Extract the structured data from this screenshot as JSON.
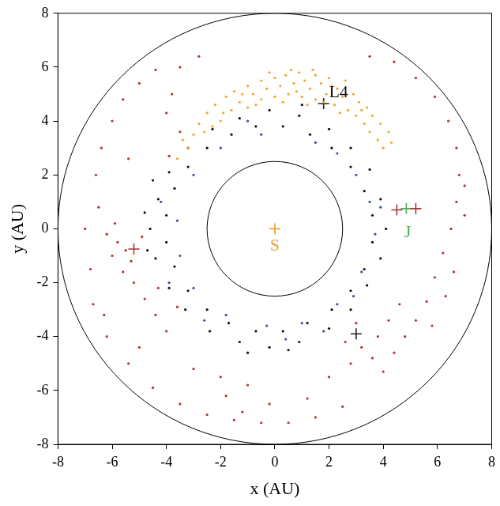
{
  "chart_data": {
    "type": "scatter",
    "x_label": "x (AU)",
    "y_label": "y (AU)",
    "xlim": [
      -8,
      8
    ],
    "ylim": [
      -8,
      8
    ],
    "xticks": [
      -8,
      -6,
      -4,
      -2,
      0,
      2,
      4,
      6,
      8
    ],
    "yticks": [
      -8,
      -6,
      -4,
      -2,
      0,
      2,
      4,
      6,
      8
    ],
    "grid": false,
    "circles": [
      2.5,
      8
    ],
    "series": [
      {
        "color": "#b5302a",
        "marker": "circle",
        "points": [
          [
            -5.5,
            -0.8
          ],
          [
            -5.8,
            -0.5
          ],
          [
            -5.3,
            -1.2
          ],
          [
            -6.0,
            -1.0
          ],
          [
            -5.6,
            -1.6
          ],
          [
            -5.9,
            0.2
          ],
          [
            -6.2,
            -0.2
          ],
          [
            -5.2,
            -2.0
          ],
          [
            -4.8,
            -2.6
          ],
          [
            -4.4,
            -3.2
          ],
          [
            -4.0,
            -3.8
          ],
          [
            -3.6,
            -2.9
          ],
          [
            -4.3,
            -2.2
          ],
          [
            -6.5,
            0.8
          ],
          [
            -6.6,
            2.0
          ],
          [
            -6.4,
            3.0
          ],
          [
            -6.0,
            4.0
          ],
          [
            -5.6,
            4.8
          ],
          [
            -5.0,
            5.4
          ],
          [
            -4.4,
            5.9
          ],
          [
            -3.8,
            5.0
          ],
          [
            -6.8,
            -1.5
          ],
          [
            -6.7,
            -2.8
          ],
          [
            -6.2,
            -4.0
          ],
          [
            -5.4,
            -5.0
          ],
          [
            -4.5,
            -5.9
          ],
          [
            -3.5,
            -6.5
          ],
          [
            -2.5,
            -6.9
          ],
          [
            -1.5,
            -7.1
          ],
          [
            -0.5,
            -7.2
          ],
          [
            0.5,
            -7.2
          ],
          [
            1.5,
            -7.0
          ],
          [
            2.5,
            -6.6
          ],
          [
            -1.8,
            -6.2
          ],
          [
            -0.2,
            -6.5
          ],
          [
            1.2,
            -6.3
          ],
          [
            2.0,
            -5.5
          ],
          [
            2.8,
            -5.0
          ],
          [
            3.2,
            -4.4
          ],
          [
            3.6,
            -4.8
          ],
          [
            4.0,
            -5.3
          ],
          [
            3.8,
            -4.0
          ],
          [
            4.4,
            -4.6
          ],
          [
            4.8,
            -4.0
          ],
          [
            5.2,
            -3.4
          ],
          [
            5.6,
            -2.7
          ],
          [
            5.9,
            -1.8
          ],
          [
            6.2,
            -0.9
          ],
          [
            6.5,
            0.0
          ],
          [
            6.7,
            1.0
          ],
          [
            6.8,
            2.0
          ],
          [
            6.7,
            3.0
          ],
          [
            6.4,
            4.0
          ],
          [
            5.9,
            4.9
          ],
          [
            5.2,
            5.6
          ],
          [
            4.4,
            6.2
          ],
          [
            5.8,
            -3.6
          ],
          [
            6.3,
            -2.5
          ],
          [
            6.6,
            -1.6
          ],
          [
            7.0,
            0.5
          ],
          [
            7.0,
            1.6
          ],
          [
            3.5,
            6.4
          ],
          [
            -2.8,
            6.4
          ],
          [
            -3.5,
            6.0
          ],
          [
            -4.0,
            4.3
          ],
          [
            -3.5,
            3.6
          ],
          [
            -3.9,
            2.7
          ],
          [
            -2.0,
            -5.5
          ],
          [
            -3.0,
            -5.2
          ],
          [
            -1.0,
            -5.8
          ],
          [
            4.6,
            -2.8
          ],
          [
            4.2,
            -3.4
          ],
          [
            -6.3,
            -3.2
          ],
          [
            -7.0,
            0.0
          ],
          [
            -4.9,
            -0.3
          ],
          [
            -5.0,
            -4.4
          ],
          [
            -5.4,
            2.6
          ],
          [
            3.0,
            -3.5
          ],
          [
            2.6,
            -4.2
          ],
          [
            -1.2,
            -6.8
          ]
        ]
      },
      {
        "color": "#f5a623",
        "marker": "circle",
        "points": [
          [
            -3.2,
            3.0
          ],
          [
            -3.0,
            3.5
          ],
          [
            -2.8,
            3.9
          ],
          [
            -2.5,
            4.3
          ],
          [
            -2.6,
            3.6
          ],
          [
            -2.2,
            4.6
          ],
          [
            -2.0,
            4.0
          ],
          [
            -1.8,
            4.9
          ],
          [
            -1.6,
            4.4
          ],
          [
            -1.5,
            5.1
          ],
          [
            -1.3,
            4.7
          ],
          [
            -1.0,
            5.3
          ],
          [
            -1.0,
            4.5
          ],
          [
            -0.8,
            5.0
          ],
          [
            -0.5,
            5.5
          ],
          [
            -0.5,
            4.8
          ],
          [
            -0.3,
            5.2
          ],
          [
            0.0,
            5.6
          ],
          [
            0.0,
            4.9
          ],
          [
            0.2,
            5.3
          ],
          [
            0.4,
            5.7
          ],
          [
            0.5,
            5.0
          ],
          [
            0.7,
            5.4
          ],
          [
            0.9,
            5.8
          ],
          [
            1.0,
            4.9
          ],
          [
            1.1,
            5.5
          ],
          [
            1.3,
            5.2
          ],
          [
            1.5,
            5.7
          ],
          [
            1.5,
            4.8
          ],
          [
            1.7,
            5.4
          ],
          [
            1.9,
            5.0
          ],
          [
            2.0,
            5.6
          ],
          [
            2.2,
            4.6
          ],
          [
            2.3,
            5.2
          ],
          [
            2.5,
            4.9
          ],
          [
            2.6,
            5.5
          ],
          [
            2.7,
            4.4
          ],
          [
            2.9,
            5.0
          ],
          [
            3.0,
            4.2
          ],
          [
            3.1,
            4.7
          ],
          [
            3.3,
            3.9
          ],
          [
            3.4,
            4.5
          ],
          [
            3.5,
            3.6
          ],
          [
            3.6,
            4.2
          ],
          [
            3.8,
            3.3
          ],
          [
            3.9,
            3.9
          ],
          [
            4.0,
            3.0
          ],
          [
            4.2,
            3.6
          ],
          [
            4.3,
            3.2
          ],
          [
            -1.2,
            5.0
          ],
          [
            -0.7,
            4.6
          ],
          [
            0.3,
            4.7
          ],
          [
            0.8,
            5.1
          ],
          [
            1.2,
            4.6
          ],
          [
            1.8,
            4.7
          ],
          [
            2.1,
            5.3
          ],
          [
            2.4,
            4.3
          ],
          [
            3.2,
            4.4
          ],
          [
            -2.3,
            3.8
          ],
          [
            -1.9,
            4.3
          ],
          [
            -3.4,
            3.3
          ],
          [
            -3.6,
            2.6
          ],
          [
            0.6,
            5.9
          ],
          [
            -0.2,
            5.8
          ],
          [
            1.4,
            5.9
          ]
        ]
      },
      {
        "color": "#3a4fa0",
        "marker": "circle",
        "points": [
          [
            3.5,
            1.0
          ],
          [
            3.0,
            2.0
          ],
          [
            1.5,
            3.2
          ],
          [
            -0.5,
            3.5
          ],
          [
            -2.0,
            3.0
          ],
          [
            -3.0,
            2.0
          ],
          [
            -3.6,
            0.3
          ],
          [
            -3.5,
            -1.0
          ],
          [
            -3.0,
            -2.2
          ],
          [
            -1.8,
            -3.2
          ],
          [
            -0.3,
            -3.6
          ],
          [
            1.0,
            -3.5
          ],
          [
            2.3,
            -2.8
          ],
          [
            3.2,
            -1.6
          ],
          [
            3.7,
            -0.2
          ],
          [
            2.3,
            2.8
          ],
          [
            -1.0,
            4.0
          ],
          [
            -3.9,
            -2.0
          ],
          [
            0.4,
            -4.1
          ],
          [
            3.9,
            0.8
          ],
          [
            -2.6,
            -3.4
          ],
          [
            1.8,
            -3.8
          ],
          [
            -4.2,
            1.0
          ],
          [
            2.9,
            -2.5
          ]
        ]
      },
      {
        "color": "#111111",
        "marker": "circle",
        "points": [
          [
            4.1,
            0.0
          ],
          [
            3.9,
            1.1
          ],
          [
            3.5,
            2.2
          ],
          [
            2.8,
            3.0
          ],
          [
            2.0,
            3.7
          ],
          [
            0.9,
            4.2
          ],
          [
            -0.2,
            4.4
          ],
          [
            -1.3,
            4.1
          ],
          [
            -2.3,
            3.7
          ],
          [
            -3.2,
            3.0
          ],
          [
            -3.9,
            2.1
          ],
          [
            -4.3,
            1.1
          ],
          [
            -4.6,
            0.0
          ],
          [
            -4.4,
            -1.1
          ],
          [
            -3.9,
            -2.2
          ],
          [
            -3.3,
            -3.0
          ],
          [
            -2.4,
            -3.8
          ],
          [
            -1.3,
            -4.2
          ],
          [
            -0.2,
            -4.4
          ],
          [
            0.9,
            -4.2
          ],
          [
            2.0,
            -3.7
          ],
          [
            2.8,
            -3.0
          ],
          [
            3.4,
            -2.1
          ],
          [
            3.9,
            -1.1
          ],
          [
            3.6,
            0.5
          ],
          [
            3.3,
            1.4
          ],
          [
            2.8,
            2.3
          ],
          [
            2.1,
            3.0
          ],
          [
            1.3,
            3.5
          ],
          [
            0.3,
            3.8
          ],
          [
            -0.7,
            3.8
          ],
          [
            -1.6,
            3.5
          ],
          [
            -2.5,
            3.0
          ],
          [
            -3.2,
            2.3
          ],
          [
            -3.7,
            1.5
          ],
          [
            -4.0,
            0.5
          ],
          [
            -4.0,
            -0.5
          ],
          [
            -3.7,
            -1.4
          ],
          [
            -3.2,
            -2.3
          ],
          [
            -2.5,
            -3.0
          ],
          [
            -1.7,
            -3.5
          ],
          [
            -0.7,
            -3.8
          ],
          [
            0.3,
            -3.8
          ],
          [
            1.2,
            -3.5
          ],
          [
            2.1,
            -3.0
          ],
          [
            2.8,
            -2.3
          ],
          [
            3.3,
            -1.5
          ],
          [
            3.6,
            -0.5
          ],
          [
            -4.8,
            0.6
          ],
          [
            -4.7,
            -0.8
          ],
          [
            -4.5,
            1.8
          ],
          [
            -1.0,
            -4.6
          ],
          [
            0.5,
            -4.5
          ],
          [
            1.0,
            4.6
          ]
        ]
      },
      {
        "color": "#f0a030",
        "marker": "cross",
        "points": [
          [
            0,
            0
          ]
        ]
      },
      {
        "color": "#222222",
        "marker": "cross",
        "points": [
          [
            1.8,
            4.65
          ],
          [
            3.0,
            -3.9
          ]
        ]
      },
      {
        "color": "#b03030",
        "marker": "cross",
        "points": [
          [
            4.5,
            0.7
          ],
          [
            5.2,
            0.75
          ],
          [
            -5.2,
            -0.75
          ]
        ]
      },
      {
        "color": "#4caf50",
        "marker": "cross",
        "points": [
          [
            4.85,
            0.75
          ]
        ]
      }
    ],
    "annotations": [
      {
        "text": "S",
        "x": 0,
        "y": -0.65,
        "color": "#f0a030"
      },
      {
        "text": "L4",
        "x": 2.35,
        "y": 5.05,
        "color": "#111111"
      },
      {
        "text": "J",
        "x": 4.9,
        "y": -0.15,
        "color": "#4caf50"
      }
    ]
  }
}
